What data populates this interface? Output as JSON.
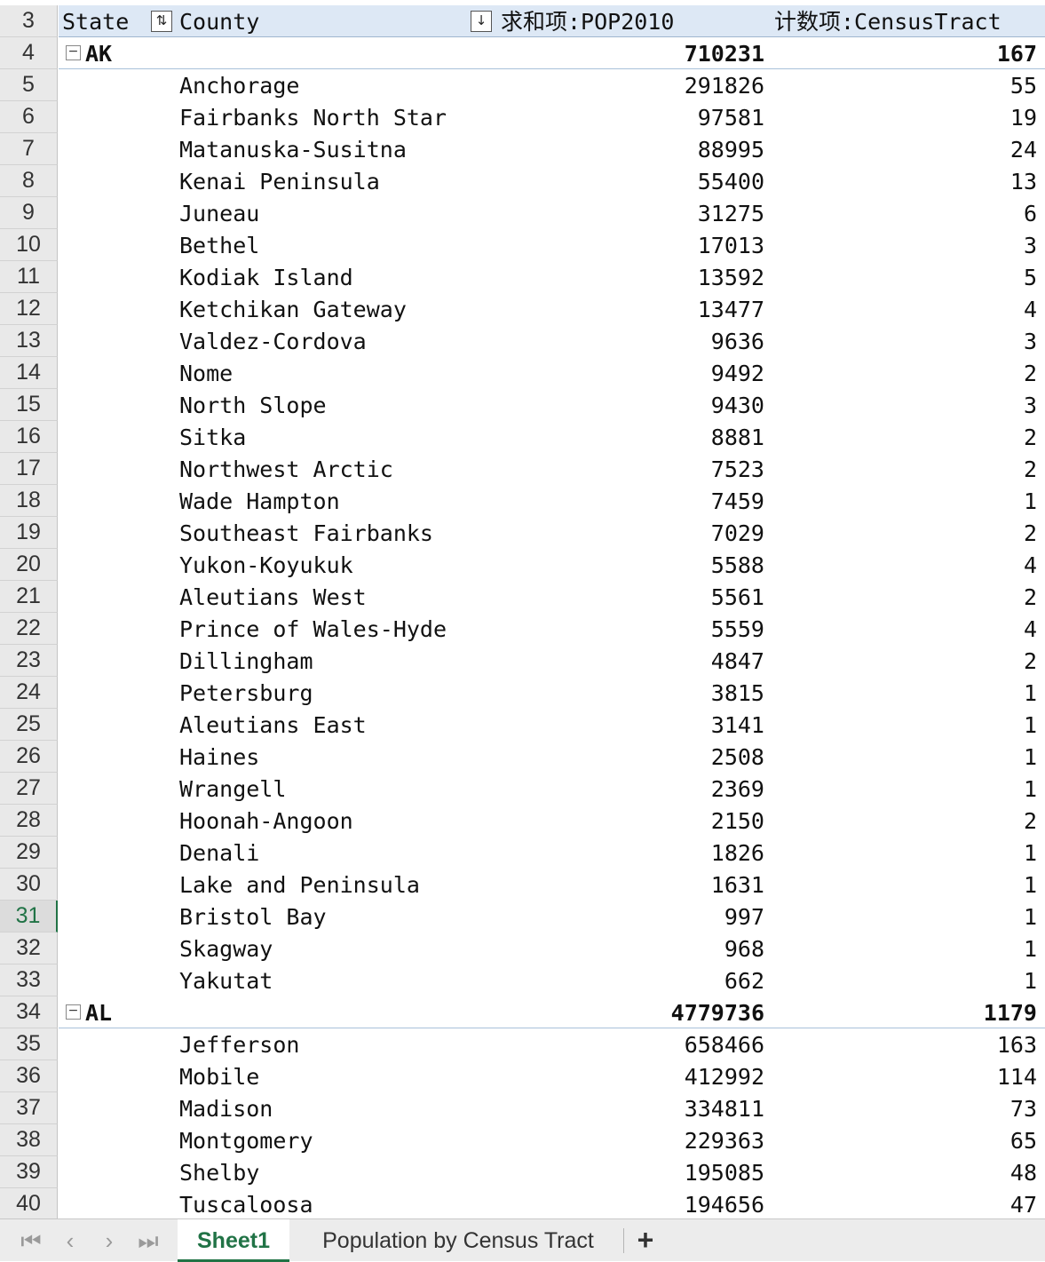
{
  "active_row": 31,
  "header": {
    "row_number": "3",
    "state_label": "State",
    "county_label": "County",
    "pop_label": "求和项:POP2010",
    "tract_label": "计数项:CensusTract"
  },
  "groups": [
    {
      "state": "AK",
      "row_number": "4",
      "pop_total": "710231",
      "tract_total": "167",
      "rows": [
        {
          "row_number": "5",
          "county": "Anchorage",
          "pop": "291826",
          "tracts": "55"
        },
        {
          "row_number": "6",
          "county": "Fairbanks North Star",
          "pop": "97581",
          "tracts": "19"
        },
        {
          "row_number": "7",
          "county": "Matanuska-Susitna",
          "pop": "88995",
          "tracts": "24"
        },
        {
          "row_number": "8",
          "county": "Kenai Peninsula",
          "pop": "55400",
          "tracts": "13"
        },
        {
          "row_number": "9",
          "county": "Juneau",
          "pop": "31275",
          "tracts": "6"
        },
        {
          "row_number": "10",
          "county": "Bethel",
          "pop": "17013",
          "tracts": "3"
        },
        {
          "row_number": "11",
          "county": "Kodiak Island",
          "pop": "13592",
          "tracts": "5"
        },
        {
          "row_number": "12",
          "county": "Ketchikan Gateway",
          "pop": "13477",
          "tracts": "4"
        },
        {
          "row_number": "13",
          "county": "Valdez-Cordova",
          "pop": "9636",
          "tracts": "3"
        },
        {
          "row_number": "14",
          "county": "Nome",
          "pop": "9492",
          "tracts": "2"
        },
        {
          "row_number": "15",
          "county": "North Slope",
          "pop": "9430",
          "tracts": "3"
        },
        {
          "row_number": "16",
          "county": "Sitka",
          "pop": "8881",
          "tracts": "2"
        },
        {
          "row_number": "17",
          "county": "Northwest Arctic",
          "pop": "7523",
          "tracts": "2"
        },
        {
          "row_number": "18",
          "county": "Wade Hampton",
          "pop": "7459",
          "tracts": "1"
        },
        {
          "row_number": "19",
          "county": "Southeast Fairbanks",
          "pop": "7029",
          "tracts": "2"
        },
        {
          "row_number": "20",
          "county": "Yukon-Koyukuk",
          "pop": "5588",
          "tracts": "4"
        },
        {
          "row_number": "21",
          "county": "Aleutians West",
          "pop": "5561",
          "tracts": "2"
        },
        {
          "row_number": "22",
          "county": "Prince of Wales-Hyder",
          "pop": "5559",
          "tracts": "4"
        },
        {
          "row_number": "23",
          "county": "Dillingham",
          "pop": "4847",
          "tracts": "2"
        },
        {
          "row_number": "24",
          "county": "Petersburg",
          "pop": "3815",
          "tracts": "1"
        },
        {
          "row_number": "25",
          "county": "Aleutians East",
          "pop": "3141",
          "tracts": "1"
        },
        {
          "row_number": "26",
          "county": "Haines",
          "pop": "2508",
          "tracts": "1"
        },
        {
          "row_number": "27",
          "county": "Wrangell",
          "pop": "2369",
          "tracts": "1"
        },
        {
          "row_number": "28",
          "county": "Hoonah-Angoon",
          "pop": "2150",
          "tracts": "2"
        },
        {
          "row_number": "29",
          "county": "Denali",
          "pop": "1826",
          "tracts": "1"
        },
        {
          "row_number": "30",
          "county": "Lake and Peninsula",
          "pop": "1631",
          "tracts": "1"
        },
        {
          "row_number": "31",
          "county": "Bristol Bay",
          "pop": "997",
          "tracts": "1"
        },
        {
          "row_number": "32",
          "county": "Skagway",
          "pop": "968",
          "tracts": "1"
        },
        {
          "row_number": "33",
          "county": "Yakutat",
          "pop": "662",
          "tracts": "1"
        }
      ]
    },
    {
      "state": "AL",
      "row_number": "34",
      "pop_total": "4779736",
      "tract_total": "1179",
      "rows": [
        {
          "row_number": "35",
          "county": "Jefferson",
          "pop": "658466",
          "tracts": "163"
        },
        {
          "row_number": "36",
          "county": "Mobile",
          "pop": "412992",
          "tracts": "114"
        },
        {
          "row_number": "37",
          "county": "Madison",
          "pop": "334811",
          "tracts": "73"
        },
        {
          "row_number": "38",
          "county": "Montgomery",
          "pop": "229363",
          "tracts": "65"
        },
        {
          "row_number": "39",
          "county": "Shelby",
          "pop": "195085",
          "tracts": "48"
        },
        {
          "row_number": "40",
          "county": "Tuscaloosa",
          "pop": "194656",
          "tracts": "47"
        }
      ]
    }
  ],
  "tabs": {
    "nav_first_icon": "first-sheet-icon",
    "nav_prev_icon": "prev-sheet-icon",
    "nav_next_icon": "next-sheet-icon",
    "nav_last_icon": "last-sheet-icon",
    "sheet1": "Sheet1",
    "sheet2": "Population by Census Tract",
    "add": "+"
  },
  "colors": {
    "accent": "#217346",
    "header_fill": "#dde8f5"
  }
}
